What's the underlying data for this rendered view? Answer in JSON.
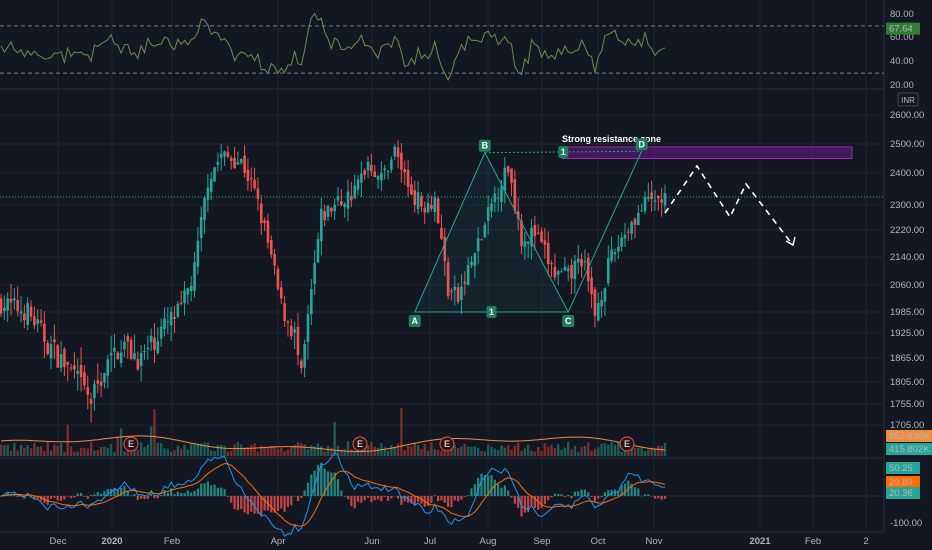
{
  "chart_data": {
    "type": "candlestick",
    "currency": "INR",
    "colors": {
      "up": "#26a69a",
      "down": "#ef5350",
      "background": "#131722",
      "grid": "#1f2430",
      "rsi": "#6a8f4a",
      "macd": "#2196f3",
      "signal": "#ff6d00",
      "pattern": "#26a69a",
      "zone": "#7b1fa2",
      "volume_ma": "#f28c3b",
      "earnings": "#ef5350",
      "dashed_path": "#ffffff"
    },
    "price_axis": {
      "ticks": [
        "2600.00",
        "2500.00",
        "2400.00",
        "2300.00",
        "2220.00",
        "2140.00",
        "2060.00",
        "1985.00",
        "1925.00",
        "1865.00",
        "1805.00",
        "1755.00",
        "1705.00"
      ]
    },
    "rsi_axis": {
      "ticks": [
        "80.00",
        "60.00",
        "40.00",
        "20.00"
      ],
      "current": "67.64",
      "bands": [
        70,
        30
      ]
    },
    "macd_axis": {
      "ticks": [
        "50.25",
        "29.89",
        "20.36",
        "-100.00"
      ],
      "labels": [
        {
          "text": "50.25",
          "color": "#26a69a"
        },
        {
          "text": "29.89",
          "color": "#ff6d00"
        },
        {
          "text": "20.36",
          "color": "#26a69a"
        }
      ]
    },
    "volume_labels": [
      {
        "text": "852.638K",
        "color": "#f28c3b"
      },
      {
        "text": "415.802K",
        "color": "#26a69a"
      }
    ],
    "date_labels": [
      "Dec",
      "2020",
      "Feb",
      "Apr",
      "Jun",
      "Jul",
      "Aug",
      "Sep",
      "Oct",
      "Nov",
      "2021",
      "Feb",
      "2"
    ],
    "annotations": {
      "zone_label": "Strong resistance zone",
      "points": [
        {
          "label": "A"
        },
        {
          "label": "B"
        },
        {
          "label": "C"
        },
        {
          "label": "D"
        }
      ],
      "ratio_labels": [
        "1",
        "1"
      ],
      "earnings_marker": "E",
      "earnings_count": 4
    },
    "last_price": "2310.00",
    "pattern_points": [
      {
        "label": "A",
        "date_index": 124,
        "price": 1985
      },
      {
        "label": "B",
        "date_index": 145,
        "price": 2470
      },
      {
        "label": "C",
        "date_index": 170,
        "price": 1985
      },
      {
        "label": "D",
        "date_index": 192,
        "price": 2475
      }
    ],
    "resistance_zone": {
      "price_low": 2450,
      "price_high": 2490
    }
  }
}
